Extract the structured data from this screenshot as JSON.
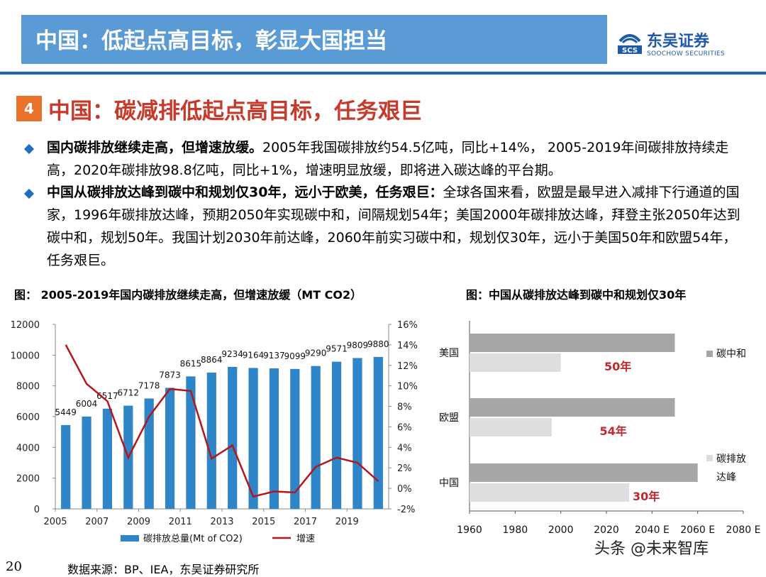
{
  "header": {
    "title": "中国：低起点高目标，彰显大国担当",
    "logo_cn": "东吴证券",
    "logo_en": "SOOCHOW SECURITIES",
    "logo_mark": "SCS"
  },
  "section": {
    "number": "4",
    "title": "中国：碳减排低起点高目标，任务艰巨"
  },
  "bullets": [
    {
      "bold": "国内碳排放继续走高，但增速放缓。",
      "text": "2005年我国碳排放约54.5亿吨，同比+14%， 2005-2019年间碳排放持续走高，2020年碳排放98.8亿吨，同比+1%，增速明显放缓，即将进入碳达峰的平台期。"
    },
    {
      "bold": "中国从碳排放达峰到碳中和规划仅30年，远小于欧美，任务艰巨：",
      "text": "全球各国来看，欧盟是最早进入减排下行通道的国家，1996年碳排放达峰，预期2050年实现碳中和，间隔规划54年；美国2000年碳排放达峰，拜登主张2050年达到碳中和，规划50年。我国计划2030年前达峰，2060年前实习碳中和，规划仅30年，远小于美国50年和欧盟54年，任务艰巨。"
    }
  ],
  "chart_data": [
    {
      "type": "bar",
      "title": "图： 2005-2019年国内碳排放继续走高，但增速放缓（MT CO2）",
      "categories": [
        "2005",
        "2006",
        "2007",
        "2008",
        "2009",
        "2010",
        "2011",
        "2012",
        "2013",
        "2014",
        "2015",
        "2016",
        "2017",
        "2018",
        "2019",
        "2020"
      ],
      "x_tick_labels": [
        "2005",
        "2007",
        "2009",
        "2011",
        "2013",
        "2015",
        "2017",
        "2019"
      ],
      "series": [
        {
          "name": "碳排放总量(Mt of CO2)",
          "axis": "left",
          "kind": "bar",
          "color": "#2e86c8",
          "values": [
            5449,
            6004,
            6517,
            6712,
            7178,
            7873,
            8615,
            8864,
            9234,
            9164,
            9137,
            9099,
            9290,
            9571,
            9809,
            9880
          ]
        },
        {
          "name": "增速",
          "axis": "right",
          "kind": "line",
          "color": "#b3171c",
          "values": [
            14.0,
            10.2,
            8.5,
            3.0,
            7.0,
            9.7,
            9.5,
            2.9,
            4.2,
            -0.8,
            -0.3,
            -0.4,
            2.1,
            3.0,
            2.5,
            0.7
          ]
        }
      ],
      "data_labels": [
        "5449",
        "6004",
        "6517",
        "6712",
        "7178",
        "7873",
        "8615",
        "8864",
        "9234",
        "9164",
        "9137",
        "9099",
        "9290",
        "9571",
        "9809",
        "9880"
      ],
      "y_left": {
        "min": 0,
        "max": 12000,
        "ticks": [
          "0",
          "2000",
          "4000",
          "6000",
          "8000",
          "10000",
          "12000"
        ]
      },
      "y_right": {
        "min": -2,
        "max": 16,
        "ticks": [
          "-2%",
          "0%",
          "2%",
          "4%",
          "6%",
          "8%",
          "10%",
          "12%",
          "14%",
          "16%"
        ]
      },
      "legend": [
        "碳排放总量(Mt of CO2)",
        "增速"
      ]
    },
    {
      "type": "bar",
      "orientation": "horizontal",
      "title": "图：中国从碳排放达峰到碳中和规划仅30年",
      "categories": [
        "美国",
        "欧盟",
        "中国"
      ],
      "series": [
        {
          "name": "碳中和",
          "color": "#a6a6a6",
          "values": [
            2050,
            2050,
            2060
          ]
        },
        {
          "name": "碳排放达峰",
          "color": "#dedede",
          "values": [
            2000,
            1996,
            2030
          ]
        }
      ],
      "gap_labels": [
        "50年",
        "54年",
        "30年"
      ],
      "x_range": [
        1960,
        2080
      ],
      "x_ticks": [
        "1960",
        "1980",
        "2000",
        "2020",
        "2040 E",
        "2060 E",
        "2080 E"
      ],
      "legend": [
        "碳中和",
        "碳排放达峰"
      ],
      "legend_lines": [
        "碳中和",
        "碳排放",
        "达峰"
      ]
    }
  ],
  "footer": {
    "page_number": "20",
    "source": "数据来源：BP、IEA，东吴证券研究所",
    "watermark": "头条 @未来智库"
  }
}
